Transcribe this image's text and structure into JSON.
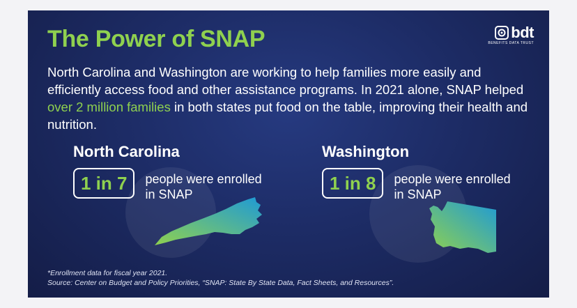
{
  "title": "The Power of SNAP",
  "logo": {
    "text": "bdt",
    "tagline": "BENEFITS DATA TRUST",
    "icon": "bdt-logo-mark-icon"
  },
  "intro": {
    "part1": "North Carolina and Washington are working to help families more easily and efficiently access food and other assistance programs. In 2021 alone, SNAP helped ",
    "highlight": "over 2 million families",
    "part2": " in both states put food on the table, improving their health and nutrition."
  },
  "states": [
    {
      "name": "North Carolina",
      "stat": "1 in 7",
      "desc_line1": "people were enrolled",
      "desc_line2": "in SNAP",
      "map_icon": "north-carolina-map-icon"
    },
    {
      "name": "Washington",
      "stat": "1 in 8",
      "desc_line1": "people were enrolled",
      "desc_line2": "in SNAP",
      "map_icon": "washington-map-icon"
    }
  ],
  "footnote": {
    "line1": "*Enrollment data for fiscal year 2021.",
    "line2": "Source: Center on Budget and Policy Priorities, “SNAP: State By State Data, Fact Sheets, and Resources”."
  },
  "colors": {
    "accent": "#8fd14f",
    "background": "#1d2c66",
    "map_gradient_start": "#8fd14f",
    "map_gradient_end": "#1f9ad6"
  }
}
